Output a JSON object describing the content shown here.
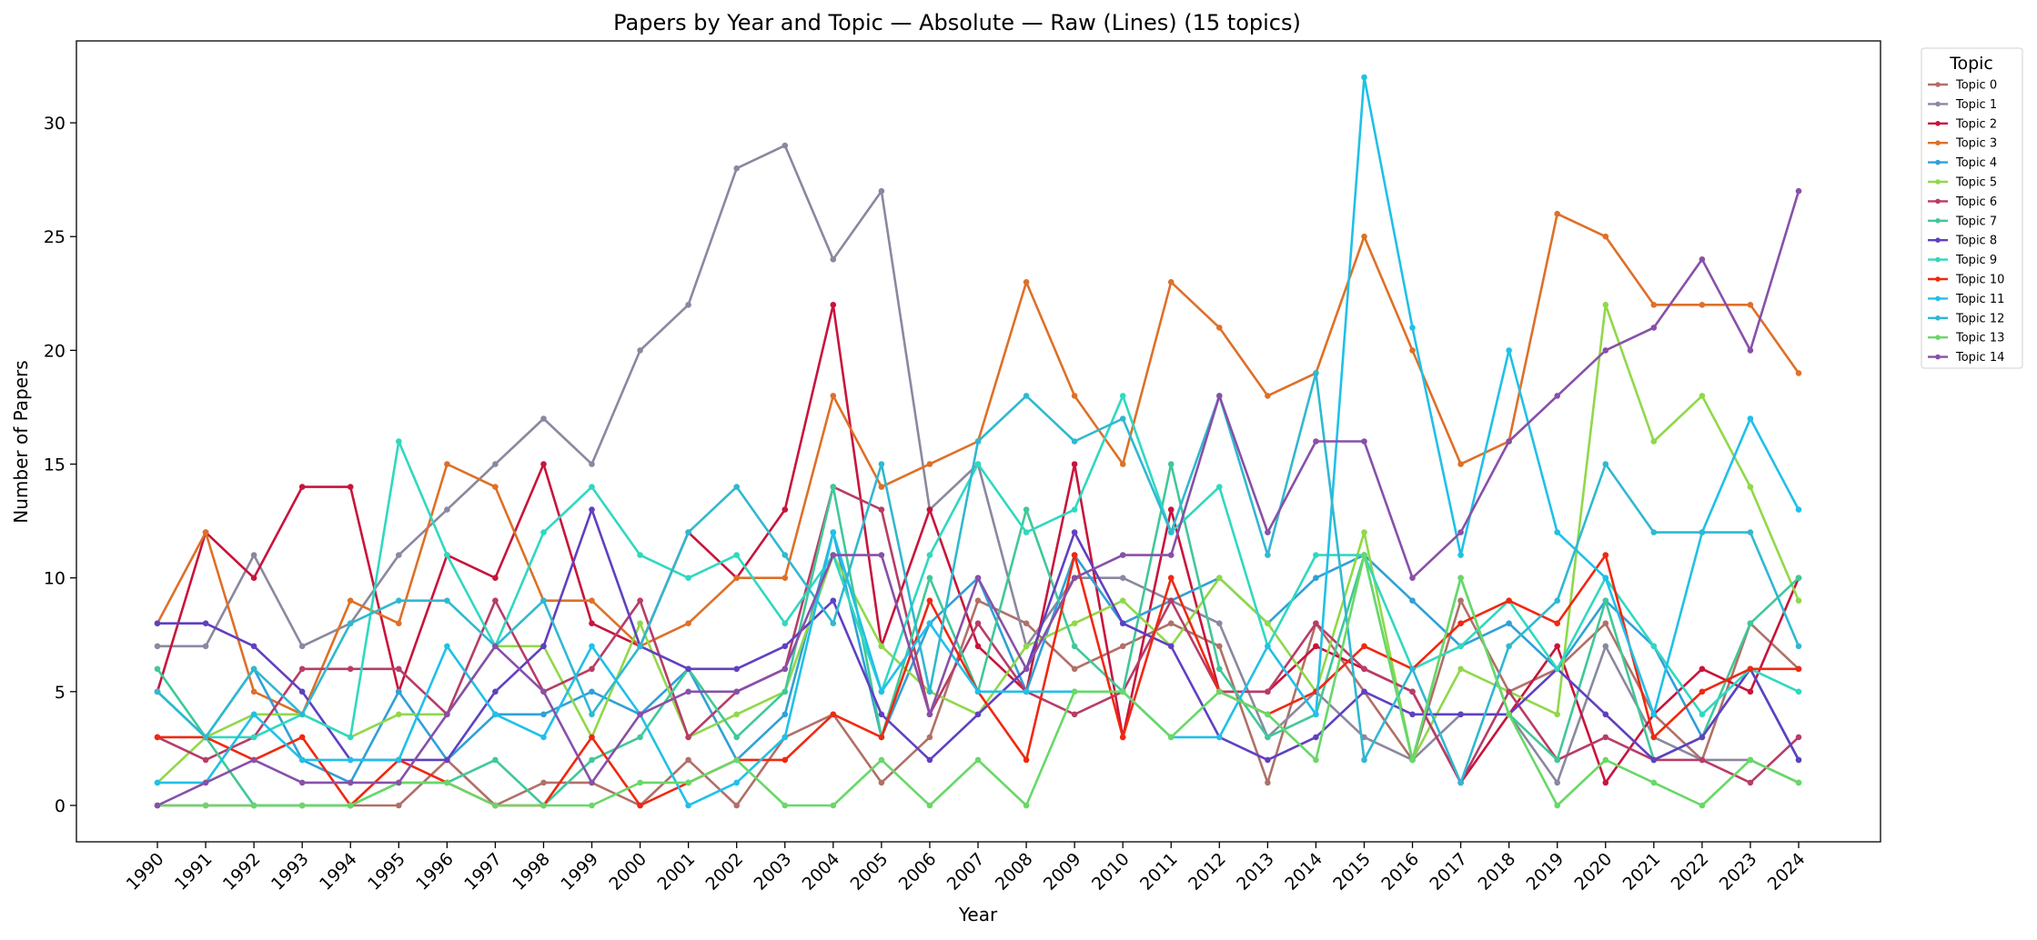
{
  "chart_data": {
    "type": "line",
    "title": "Papers by Year and Topic — Absolute — Raw (Lines) (15 topics)",
    "xlabel": "Year",
    "ylabel": "Number of Papers",
    "ylim": [
      -1.6,
      33.6
    ],
    "yticks": [
      0,
      5,
      10,
      15,
      20,
      25,
      30
    ],
    "grid": false,
    "legend_title": "Topic",
    "legend_placement": "outside-top-right",
    "x": [
      "1990",
      "1991",
      "1992",
      "1993",
      "1994",
      "1995",
      "1996",
      "1997",
      "1998",
      "1999",
      "2000",
      "2001",
      "2002",
      "2003",
      "2004",
      "2005",
      "2006",
      "2007",
      "2008",
      "2009",
      "2010",
      "2011",
      "2012",
      "2013",
      "2014",
      "2015",
      "2016",
      "2017",
      "2018",
      "2019",
      "2020",
      "2021",
      "2022",
      "2023",
      "2024"
    ],
    "series": [
      {
        "name": "Topic 0",
        "color": "#b07068",
        "values": [
          0,
          0,
          0,
          0,
          0,
          0,
          2,
          0,
          1,
          1,
          0,
          2,
          0,
          3,
          4,
          1,
          3,
          9,
          8,
          6,
          7,
          8,
          7,
          1,
          8,
          5,
          2,
          9,
          5,
          6,
          8,
          4,
          2,
          8,
          6
        ]
      },
      {
        "name": "Topic 1",
        "color": "#8a88a0",
        "values": [
          7,
          7,
          11,
          7,
          8,
          11,
          13,
          15,
          17,
          15,
          20,
          22,
          28,
          29,
          24,
          27,
          13,
          15,
          7,
          10,
          10,
          9,
          8,
          3,
          5,
          3,
          2,
          4,
          4,
          1,
          7,
          3,
          2,
          2,
          1
        ]
      },
      {
        "name": "Topic 2",
        "color": "#c8143c",
        "values": [
          5,
          12,
          10,
          14,
          14,
          5,
          11,
          10,
          15,
          8,
          7,
          12,
          10,
          13,
          22,
          7,
          13,
          7,
          5,
          15,
          3,
          13,
          5,
          5,
          7,
          6,
          5,
          1,
          4,
          7,
          1,
          4,
          6,
          5,
          10
        ]
      },
      {
        "name": "Topic 3",
        "color": "#de7028",
        "values": [
          8,
          12,
          5,
          4,
          9,
          8,
          15,
          14,
          9,
          9,
          7,
          8,
          10,
          10,
          18,
          14,
          15,
          16,
          23,
          18,
          15,
          23,
          21,
          18,
          19,
          25,
          20,
          15,
          16,
          26,
          25,
          22,
          22,
          22,
          19
        ]
      },
      {
        "name": "Topic 4",
        "color": "#30a0d8",
        "values": [
          5,
          3,
          6,
          2,
          1,
          5,
          2,
          4,
          4,
          5,
          4,
          6,
          2,
          4,
          12,
          3,
          8,
          10,
          5,
          11,
          8,
          9,
          10,
          8,
          10,
          11,
          9,
          7,
          8,
          6,
          9,
          7,
          3,
          6,
          2
        ]
      },
      {
        "name": "Topic 5",
        "color": "#90d84a",
        "values": [
          1,
          3,
          4,
          4,
          3,
          4,
          4,
          7,
          7,
          3,
          8,
          3,
          4,
          5,
          11,
          7,
          5,
          4,
          7,
          8,
          9,
          7,
          10,
          8,
          5,
          12,
          2,
          6,
          5,
          4,
          22,
          16,
          18,
          14,
          9
        ]
      },
      {
        "name": "Topic 6",
        "color": "#b83c68",
        "values": [
          3,
          2,
          3,
          6,
          6,
          6,
          4,
          9,
          5,
          6,
          9,
          3,
          5,
          6,
          14,
          13,
          4,
          8,
          5,
          4,
          5,
          9,
          5,
          5,
          8,
          6,
          5,
          1,
          5,
          2,
          3,
          2,
          2,
          1,
          3
        ]
      },
      {
        "name": "Topic 7",
        "color": "#40c898",
        "values": [
          6,
          3,
          0,
          0,
          0,
          1,
          1,
          2,
          0,
          2,
          3,
          6,
          3,
          5,
          14,
          3,
          10,
          5,
          13,
          7,
          5,
          15,
          6,
          3,
          4,
          11,
          2,
          10,
          4,
          2,
          9,
          2,
          3,
          8,
          10
        ]
      },
      {
        "name": "Topic 8",
        "color": "#6040c0",
        "values": [
          8,
          8,
          7,
          5,
          2,
          2,
          2,
          5,
          7,
          13,
          7,
          6,
          6,
          7,
          9,
          4,
          2,
          4,
          6,
          12,
          8,
          7,
          3,
          2,
          3,
          5,
          4,
          4,
          4,
          6,
          4,
          2,
          3,
          6,
          2
        ]
      },
      {
        "name": "Topic 9",
        "color": "#30d8c0",
        "values": [
          5,
          3,
          3,
          4,
          3,
          16,
          11,
          7,
          12,
          14,
          11,
          10,
          11,
          8,
          11,
          5,
          11,
          15,
          12,
          13,
          18,
          12,
          14,
          7,
          11,
          11,
          6,
          7,
          9,
          6,
          10,
          7,
          4,
          6,
          5
        ]
      },
      {
        "name": "Topic 10",
        "color": "#f02810",
        "values": [
          3,
          3,
          2,
          3,
          0,
          2,
          1,
          0,
          0,
          3,
          0,
          1,
          2,
          2,
          4,
          3,
          9,
          5,
          2,
          11,
          3,
          10,
          5,
          4,
          5,
          7,
          6,
          8,
          9,
          8,
          11,
          3,
          5,
          6,
          6
        ]
      },
      {
        "name": "Topic 11",
        "color": "#20c0e8",
        "values": [
          1,
          1,
          4,
          2,
          2,
          2,
          7,
          4,
          3,
          7,
          4,
          0,
          1,
          3,
          12,
          5,
          8,
          5,
          5,
          5,
          5,
          3,
          3,
          7,
          4,
          32,
          21,
          11,
          20,
          12,
          10,
          4,
          12,
          17,
          13
        ]
      },
      {
        "name": "Topic 12",
        "color": "#30b8d0",
        "values": [
          5,
          3,
          6,
          4,
          8,
          9,
          9,
          7,
          9,
          4,
          7,
          12,
          14,
          11,
          8,
          15,
          5,
          16,
          18,
          16,
          17,
          12,
          18,
          11,
          19,
          2,
          6,
          1,
          7,
          9,
          15,
          12,
          12,
          12,
          7
        ]
      },
      {
        "name": "Topic 13",
        "color": "#68d868",
        "values": [
          0,
          0,
          0,
          0,
          0,
          1,
          1,
          0,
          0,
          0,
          1,
          1,
          2,
          0,
          0,
          2,
          0,
          2,
          0,
          5,
          5,
          3,
          5,
          4,
          2,
          11,
          2,
          10,
          4,
          0,
          2,
          1,
          0,
          2,
          1
        ]
      },
      {
        "name": "Topic 14",
        "color": "#8850a8",
        "values": [
          0,
          1,
          2,
          1,
          1,
          1,
          4,
          7,
          5,
          1,
          4,
          5,
          5,
          6,
          11,
          11,
          4,
          10,
          6,
          10,
          11,
          11,
          18,
          12,
          16,
          16,
          10,
          12,
          16,
          18,
          20,
          21,
          24,
          20,
          27
        ]
      }
    ]
  }
}
